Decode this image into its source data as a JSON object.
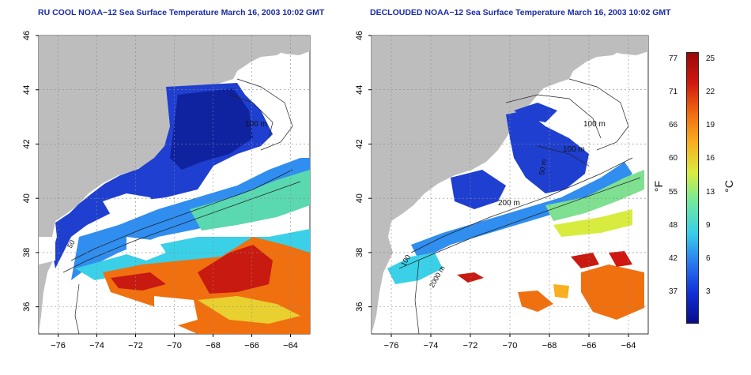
{
  "left_panel": {
    "title": "RU COOL NOAA−12 Sea Surface Temperature March 16, 2003 10:02 GMT",
    "contour_labels": [
      "100 m",
      "50"
    ]
  },
  "right_panel": {
    "title": "DECLOUDED NOAA−12 Sea Surface Temperature March 16, 2003 10:02 GMT",
    "contour_labels": [
      "100 m",
      "100 m",
      "200 m",
      "50 m",
      "2000 m",
      "100"
    ]
  },
  "axes": {
    "x_ticks": [
      "−76",
      "−74",
      "−72",
      "−70",
      "−68",
      "−66",
      "−64"
    ],
    "y_ticks": [
      "46",
      "44",
      "42",
      "40",
      "38",
      "36"
    ],
    "xlim": [
      -77,
      -63
    ],
    "ylim": [
      35,
      46
    ]
  },
  "colorbar": {
    "unit_f": "°F",
    "unit_c": "°C",
    "f_ticks": [
      "77",
      "71",
      "66",
      "60",
      "55",
      "48",
      "42",
      "37"
    ],
    "c_ticks": [
      "25",
      "22",
      "19",
      "16",
      "13",
      "9",
      "6",
      "3"
    ],
    "colors": [
      "#0a0c8a",
      "#1030d8",
      "#2a7af0",
      "#3ad0e8",
      "#6ee8a0",
      "#d8ec40",
      "#f8b020",
      "#f06a10",
      "#d01810",
      "#9a0808"
    ]
  },
  "colors": {
    "land": "#bdbdbd",
    "cold": "#1f3fd0",
    "warm": "#f07010",
    "gridline": "#888888"
  }
}
